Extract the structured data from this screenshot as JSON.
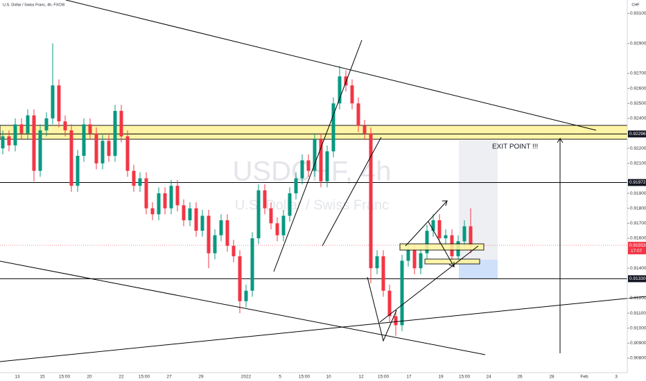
{
  "chart_data": {
    "type": "candlestick",
    "title": "U.S. Dollar / Swiss Franc, 4h, FXCM",
    "currency": "CHF",
    "watermark": "USDCHF, 4h",
    "watermark_subtitle": "U.S. Dollar / Swiss Franc",
    "annotation": "EXIT POINT !!!",
    "countdown": "17:07",
    "up_color": "#089981",
    "down_color": "#f23645",
    "ylim": [
      0.90703,
      0.9319
    ],
    "yticks": [
      {
        "value": 0.908,
        "label": "0.90800"
      },
      {
        "value": 0.909,
        "label": "0.90900"
      },
      {
        "value": 0.91,
        "label": "0.91000"
      },
      {
        "value": 0.911,
        "label": "0.91100"
      },
      {
        "value": 0.912,
        "label": "0.91200"
      },
      {
        "value": 0.914,
        "label": "0.91400"
      },
      {
        "value": 0.916,
        "label": "0.91600"
      },
      {
        "value": 0.917,
        "label": "0.91700"
      },
      {
        "value": 0.918,
        "label": "0.91800"
      },
      {
        "value": 0.919,
        "label": "0.91900"
      },
      {
        "value": 0.921,
        "label": "0.92100"
      },
      {
        "value": 0.922,
        "label": "0.92200"
      },
      {
        "value": 0.924,
        "label": "0.92400"
      },
      {
        "value": 0.925,
        "label": "0.92500"
      },
      {
        "value": 0.926,
        "label": "0.92600"
      },
      {
        "value": 0.927,
        "label": "0.92700"
      },
      {
        "value": 0.929,
        "label": "0.92900"
      },
      {
        "value": 0.931,
        "label": "0.93100"
      }
    ],
    "levels": [
      {
        "value": 0.92296,
        "label": "0.92296"
      },
      {
        "value": 0.91972,
        "label": "0.91972"
      },
      {
        "value": 0.9133,
        "label": "0.91330"
      }
    ],
    "last_price": {
      "value": 0.91553,
      "label": "0.91553"
    },
    "x_labels": [
      "13",
      "15",
      "15:00",
      "20",
      "22",
      "15:00",
      "27",
      "29",
      "2022",
      "5",
      "15:00",
      "10",
      "12",
      "15:00",
      "17",
      "19",
      "15:00",
      "24",
      "26",
      "28",
      "Feb",
      "3"
    ],
    "open": [
      0.922,
      0.9228,
      0.9222,
      0.9236,
      0.923,
      0.9242,
      0.9205,
      0.9232,
      0.924,
      0.9262,
      0.9238,
      0.9232,
      0.9195,
      0.9215,
      0.9236,
      0.923,
      0.921,
      0.9225,
      0.9215,
      0.9245,
      0.9228,
      0.9205,
      0.9195,
      0.92,
      0.918,
      0.9176,
      0.919,
      0.918,
      0.9195,
      0.9182,
      0.9172,
      0.918,
      0.9165,
      0.9175,
      0.915,
      0.9162,
      0.9172,
      0.9155,
      0.9148,
      0.9118,
      0.9125,
      0.916,
      0.9192,
      0.918,
      0.917,
      0.9162,
      0.9175,
      0.919,
      0.92,
      0.9212,
      0.9205,
      0.9226,
      0.9198,
      0.9218,
      0.925,
      0.9268,
      0.9262,
      0.925,
      0.9235,
      0.923,
      0.914,
      0.9148,
      0.9125,
      0.9108,
      0.9102,
      0.9145,
      0.9152,
      0.914,
      0.915,
      0.9165,
      0.9172,
      0.916,
      0.9162,
      0.9148,
      0.9158,
      0.9168
    ],
    "high": [
      0.9232,
      0.9232,
      0.924,
      0.924,
      0.9246,
      0.9246,
      0.9236,
      0.9244,
      0.929,
      0.9266,
      0.9242,
      0.9236,
      0.9219,
      0.924,
      0.924,
      0.9234,
      0.9229,
      0.9229,
      0.9249,
      0.9249,
      0.9232,
      0.9209,
      0.9204,
      0.9204,
      0.9184,
      0.9194,
      0.9194,
      0.9199,
      0.9199,
      0.9186,
      0.9184,
      0.9184,
      0.9179,
      0.9179,
      0.9166,
      0.9176,
      0.9176,
      0.9159,
      0.9152,
      0.9129,
      0.9164,
      0.9196,
      0.9196,
      0.9184,
      0.9174,
      0.9179,
      0.9194,
      0.9204,
      0.9216,
      0.9216,
      0.923,
      0.923,
      0.9222,
      0.9254,
      0.9275,
      0.9272,
      0.9266,
      0.9254,
      0.9239,
      0.9234,
      0.9152,
      0.9152,
      0.9129,
      0.9112,
      0.9149,
      0.9156,
      0.9156,
      0.9154,
      0.9169,
      0.9176,
      0.9176,
      0.9166,
      0.9166,
      0.9162,
      0.9172,
      0.918
    ],
    "low": [
      0.9216,
      0.9218,
      0.9218,
      0.9226,
      0.9226,
      0.9198,
      0.9201,
      0.9228,
      0.9236,
      0.9234,
      0.9228,
      0.9191,
      0.9191,
      0.9211,
      0.9226,
      0.9206,
      0.9206,
      0.9211,
      0.9211,
      0.9224,
      0.9201,
      0.9191,
      0.9191,
      0.9176,
      0.9172,
      0.9172,
      0.9176,
      0.9176,
      0.9178,
      0.9168,
      0.9168,
      0.9161,
      0.9161,
      0.914,
      0.9146,
      0.9158,
      0.9151,
      0.9144,
      0.911,
      0.9114,
      0.9121,
      0.9156,
      0.9176,
      0.9166,
      0.9158,
      0.9158,
      0.9171,
      0.9186,
      0.9196,
      0.9201,
      0.9201,
      0.9194,
      0.9194,
      0.9214,
      0.9246,
      0.9258,
      0.9246,
      0.9231,
      0.9226,
      0.913,
      0.9136,
      0.9121,
      0.9104,
      0.9095,
      0.9098,
      0.9141,
      0.9136,
      0.9136,
      0.9146,
      0.9161,
      0.9156,
      0.9156,
      0.9144,
      0.9144,
      0.9154,
      0.915
    ],
    "close": [
      0.9228,
      0.9222,
      0.9236,
      0.923,
      0.9242,
      0.9205,
      0.9232,
      0.924,
      0.9262,
      0.9238,
      0.9232,
      0.9195,
      0.9215,
      0.9236,
      0.923,
      0.921,
      0.9225,
      0.9215,
      0.9245,
      0.9228,
      0.9205,
      0.9195,
      0.92,
      0.918,
      0.9176,
      0.919,
      0.918,
      0.9195,
      0.9182,
      0.9172,
      0.918,
      0.9165,
      0.9175,
      0.915,
      0.9162,
      0.9172,
      0.9155,
      0.9148,
      0.9118,
      0.9125,
      0.916,
      0.9192,
      0.918,
      0.917,
      0.9162,
      0.9175,
      0.919,
      0.92,
      0.9212,
      0.9205,
      0.9226,
      0.9198,
      0.9218,
      0.925,
      0.9268,
      0.9262,
      0.925,
      0.9235,
      0.923,
      0.914,
      0.9148,
      0.9125,
      0.9108,
      0.9102,
      0.9145,
      0.9152,
      0.914,
      0.915,
      0.9165,
      0.9172,
      0.916,
      0.9162,
      0.9148,
      0.9158,
      0.9168,
      0.91553
    ]
  }
}
